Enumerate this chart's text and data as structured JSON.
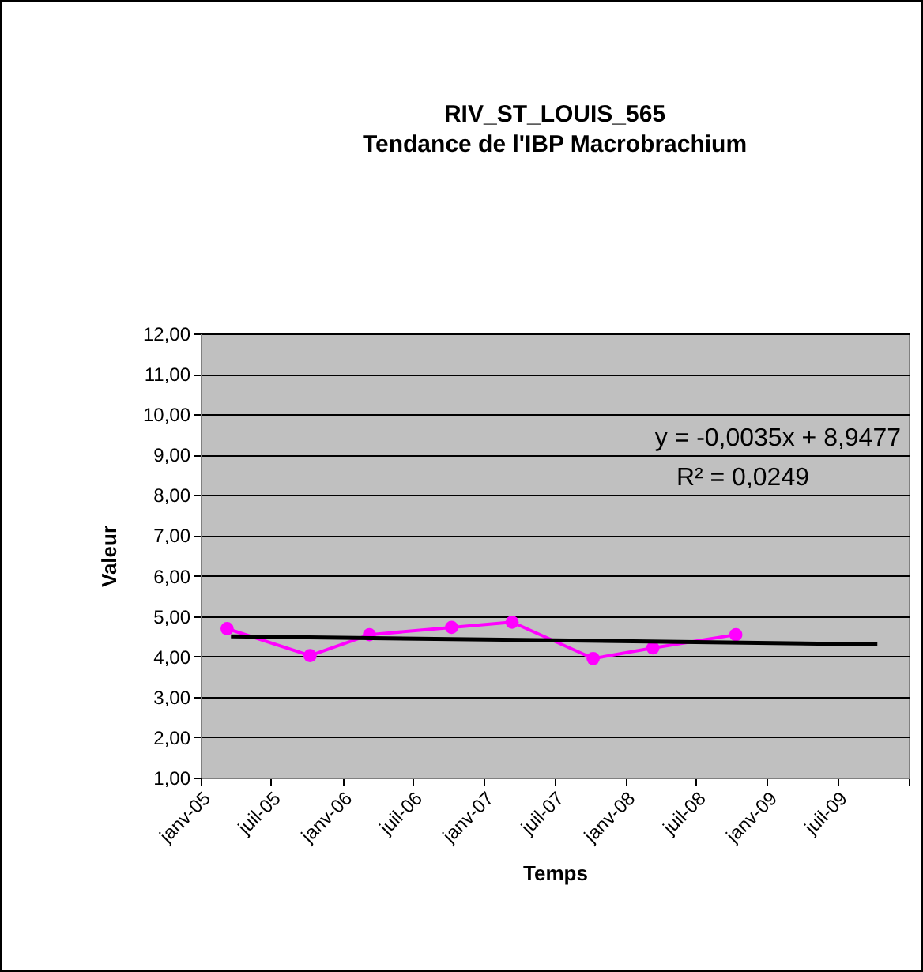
{
  "chart_data": {
    "type": "line",
    "title": "RIV_ST_LOUIS_565",
    "subtitle": "Tendance de l'IBP Macrobrachium",
    "xlabel": "Temps",
    "ylabel": "Valeur",
    "x": [
      "2005-03-10",
      "2005-10-10",
      "2006-03-12",
      "2006-10-10",
      "2007-03-15",
      "2007-10-10",
      "2008-03-12",
      "2008-10-12"
    ],
    "series": [
      {
        "color": "#ff00ff",
        "values": [
          4.69,
          4.02,
          4.54,
          4.72,
          4.85,
          3.95,
          4.21,
          4.54
        ],
        "marker": "circle"
      },
      {
        "type": "line",
        "color": "#000000",
        "x": [
          "2005-03-20",
          "2009-10-12"
        ],
        "values": [
          4.5,
          4.3
        ],
        "marker": "none"
      }
    ],
    "xlim": [
      "2005-01",
      "2010-01"
    ],
    "xticks": [
      {
        "value": "2005-01",
        "label": "janv-05"
      },
      {
        "value": "2005-07",
        "label": "juil-05"
      },
      {
        "value": "2006-01",
        "label": "janv-06"
      },
      {
        "value": "2006-07",
        "label": "juil-06"
      },
      {
        "value": "2007-01",
        "label": "janv-07"
      },
      {
        "value": "2007-07",
        "label": "juil-07"
      },
      {
        "value": "2008-01",
        "label": "janv-08"
      },
      {
        "value": "2008-07",
        "label": "juil-08"
      },
      {
        "value": "2009-01",
        "label": "janv-09"
      },
      {
        "value": "2009-07",
        "label": "juil-09"
      },
      {
        "value": "2010-01",
        "label": null
      }
    ],
    "ylim": [
      1,
      12
    ],
    "yticks": [
      {
        "value": 1,
        "label": "1,00"
      },
      {
        "value": 2,
        "label": "2,00"
      },
      {
        "value": 3,
        "label": "3,00"
      },
      {
        "value": 4,
        "label": "4,00"
      },
      {
        "value": 5,
        "label": "5,00"
      },
      {
        "value": 6,
        "label": "6,00"
      },
      {
        "value": 7,
        "label": "7,00"
      },
      {
        "value": 8,
        "label": "8,00"
      },
      {
        "value": 9,
        "label": "9,00"
      },
      {
        "value": 10,
        "label": "10,00"
      },
      {
        "value": 11,
        "label": "11,00"
      },
      {
        "value": 12,
        "label": "12,00"
      }
    ],
    "grid": "y",
    "annotations": [
      "y = -0,0035x + 8,9477",
      "R² = 0,0249"
    ]
  }
}
